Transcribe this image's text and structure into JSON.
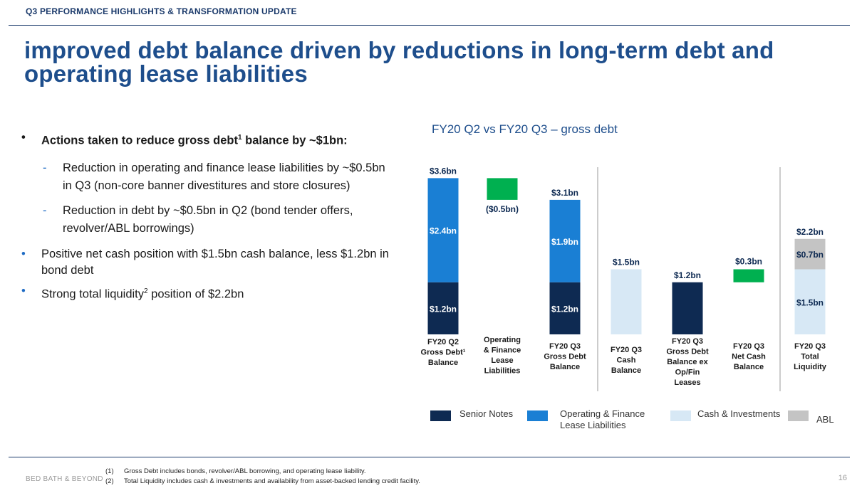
{
  "header": "Q3 PERFORMANCE HIGHLIGHTS & TRANSFORMATION UPDATE",
  "title": "improved debt balance driven by reductions in long-term debt and operating lease liabilities",
  "bullets": {
    "b1_text": "Actions taken to reduce gross debt",
    "b1_sup": "1",
    "b1_tail": " balance by ~$1bn:",
    "sub1": "Reduction in operating and finance lease liabilities by ~$0.5bn in Q3 (non-core banner divestitures and store closures)",
    "sub2": "Reduction in debt by ~$0.5bn in Q2 (bond tender offers, revolver/ABL borrowings)",
    "b2": "Positive net cash position with $1.5bn cash balance, less $1.2bn in bond debt",
    "b3_text": "Strong total liquidity",
    "b3_sup": "2",
    "b3_tail": " position of $2.2bn",
    "bullet_glyph": "•",
    "dash_glyph": "-"
  },
  "chart_title": "FY20 Q2 vs FY20 Q3 – gross debt",
  "chart_data": {
    "type": "bar",
    "unit": "$bn",
    "categories": [
      [
        "FY20 Q2",
        "Gross Debt¹",
        "Balance"
      ],
      [
        "Operating",
        "& Finance",
        "Lease",
        "Liabilities"
      ],
      [
        "FY20 Q3",
        "Gross Debt",
        "Balance"
      ],
      [
        "FY20 Q3",
        "Cash",
        "Balance"
      ],
      [
        "FY20 Q3",
        "Gross Debt",
        "Balance ex",
        "Op/Fin",
        "Leases"
      ],
      [
        "FY20 Q3",
        "Net Cash",
        "Balance"
      ],
      [
        "FY20 Q3",
        "Total",
        "Liquidity"
      ]
    ],
    "series": [
      {
        "name": "Senior Notes",
        "color": "#0e2a52",
        "values": [
          1.2,
          null,
          1.2,
          null,
          1.2,
          null,
          null
        ]
      },
      {
        "name": "Operating & Finance Lease Liabilities",
        "color": "#1a7fd4",
        "values": [
          2.4,
          null,
          1.9,
          null,
          null,
          null,
          null
        ]
      },
      {
        "name": "Cash & Investments",
        "color": "#d7e8f5",
        "values": [
          null,
          null,
          null,
          1.5,
          null,
          null,
          1.5
        ]
      },
      {
        "name": "ABL",
        "color": "#c4c4c4",
        "values": [
          null,
          null,
          null,
          null,
          null,
          null,
          0.7
        ]
      }
    ],
    "changes": [
      {
        "index": 1,
        "from": 3.6,
        "to": 3.1,
        "label": "($0.5bn)",
        "color": "#00b050"
      },
      {
        "index": 5,
        "from": 1.5,
        "to": 1.2,
        "label": "$0.3bn",
        "color": "#00b050"
      }
    ],
    "segment_labels": [
      {
        "index": 0,
        "series": 0,
        "text": "$1.2bn"
      },
      {
        "index": 0,
        "series": 1,
        "text": "$2.4bn"
      },
      {
        "index": 2,
        "series": 0,
        "text": "$1.2bn"
      },
      {
        "index": 2,
        "series": 1,
        "text": "$1.9bn"
      },
      {
        "index": 6,
        "series": 2,
        "text": "$1.5bn"
      },
      {
        "index": 6,
        "series": 3,
        "text": "$0.7bn"
      }
    ],
    "total_labels": [
      "$3.6bn",
      null,
      "$3.1bn",
      "$1.5bn",
      "$1.2bn",
      null,
      "$2.2bn"
    ],
    "ylim": [
      0,
      3.6
    ],
    "grid": false,
    "legend_position": "bottom"
  },
  "legend": {
    "senior_notes": "Senior Notes",
    "op_fin_line1": "Operating & Finance",
    "op_fin_line2": "Lease Liabilities",
    "cash": "Cash & Investments",
    "abl": "ABL"
  },
  "footnotes": {
    "n1": "(1)",
    "t1": "Gross Debt includes bonds, revolver/ABL borrowing, and operating lease liability.",
    "n2": "(2)",
    "t2": "Total Liquidity includes cash & investments and availability from asset-backed lending credit facility."
  },
  "brand": "BED BATH & BEYOND",
  "page_number": "16"
}
